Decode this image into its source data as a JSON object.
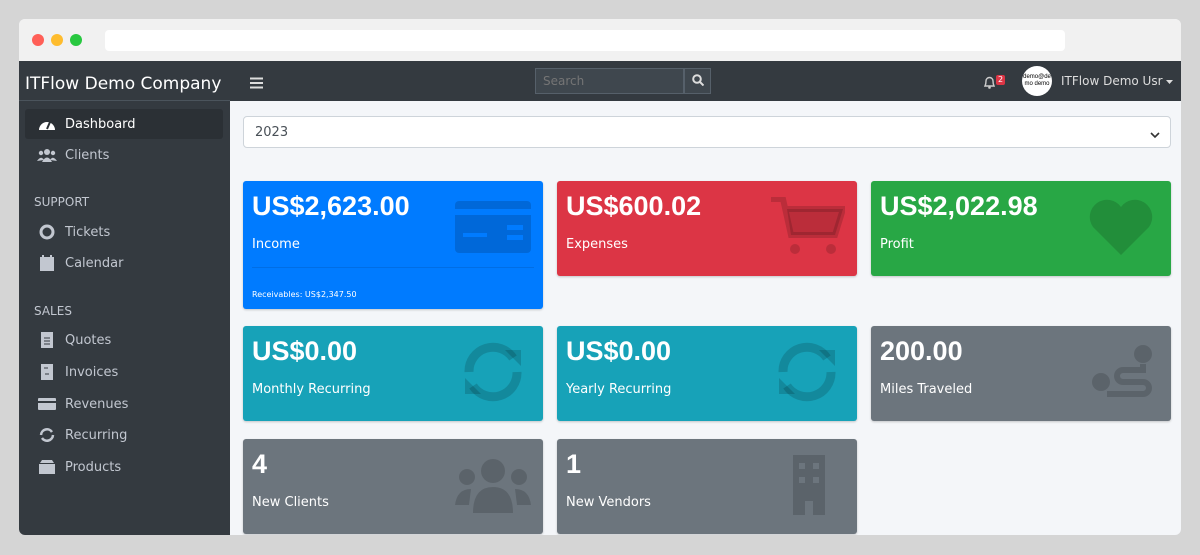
{
  "sidebar": {
    "brand": "ITFlow Demo Company",
    "items": [
      {
        "label": "Dashboard",
        "icon": "tachometer-icon",
        "active": true
      },
      {
        "label": "Clients",
        "icon": "users-icon"
      }
    ],
    "support_header": "SUPPORT",
    "support": [
      {
        "label": "Tickets",
        "icon": "life-ring-icon"
      },
      {
        "label": "Calendar",
        "icon": "calendar-icon"
      }
    ],
    "sales_header": "SALES",
    "sales": [
      {
        "label": "Quotes",
        "icon": "file-icon"
      },
      {
        "label": "Invoices",
        "icon": "file-invoice-icon"
      },
      {
        "label": "Revenues",
        "icon": "credit-card-icon"
      },
      {
        "label": "Recurring",
        "icon": "sync-icon"
      },
      {
        "label": "Products",
        "icon": "box-icon"
      }
    ]
  },
  "topbar": {
    "search_placeholder": "Search",
    "notifications": "2",
    "avatar_text": "demo@demo demo",
    "user": "ITFlow Demo Usr"
  },
  "year": "2023",
  "cards": [
    {
      "value": "US$2,623.00",
      "label": "Income",
      "footer": "Receivables: US$2,347.50",
      "color": "#007bff"
    },
    {
      "value": "US$600.02",
      "label": "Expenses",
      "color": "#dc3545"
    },
    {
      "value": "US$2,022.98",
      "label": "Profit",
      "color": "#28a745"
    },
    {
      "value": "US$0.00",
      "label": "Monthly Recurring",
      "color": "#17a2b8"
    },
    {
      "value": "US$0.00",
      "label": "Yearly Recurring",
      "color": "#17a2b8"
    },
    {
      "value": "200.00",
      "label": "Miles Traveled",
      "color": "#6c757d"
    },
    {
      "value": "4",
      "label": "New Clients",
      "color": "#6c757d"
    },
    {
      "value": "1",
      "label": "New Vendors",
      "color": "#6c757d"
    }
  ]
}
